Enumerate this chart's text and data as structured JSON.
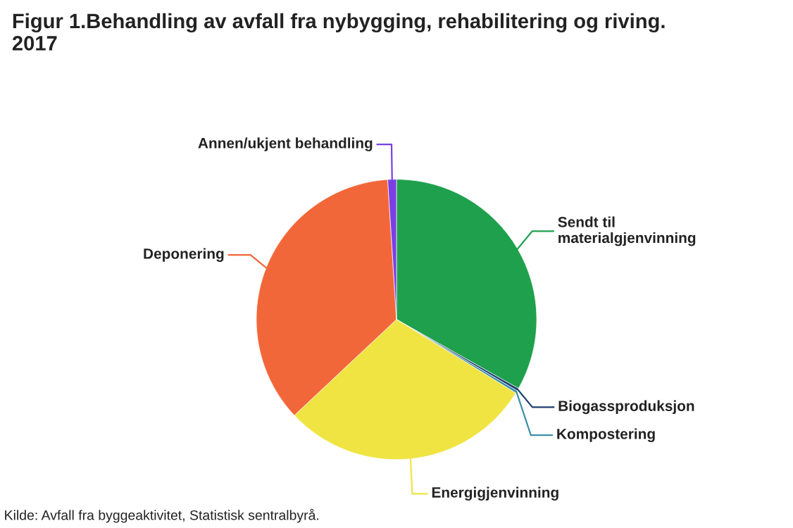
{
  "chart_data": {
    "type": "pie",
    "title": "Figur 1.Behandling av avfall fra nybygging, rehabilitering og riving.\n2017",
    "categories": [
      "Sendt til\nmaterialgjenvinning",
      "Biogassproduksjon",
      "Kompostering",
      "Energigjenvinning",
      "Deponering",
      "Annen/ukjent behandling"
    ],
    "values": [
      33.2,
      0.3,
      0.3,
      29.2,
      36.0,
      1.0
    ],
    "colors": [
      "#1fa04d",
      "#1d3f6e",
      "#3c8fa8",
      "#f0e442",
      "#f26739",
      "#7b3fe4"
    ],
    "legend": false,
    "annotations": [
      "Kilde: Avfall fra byggeaktivitet, Statistisk sentralbyrå."
    ]
  }
}
